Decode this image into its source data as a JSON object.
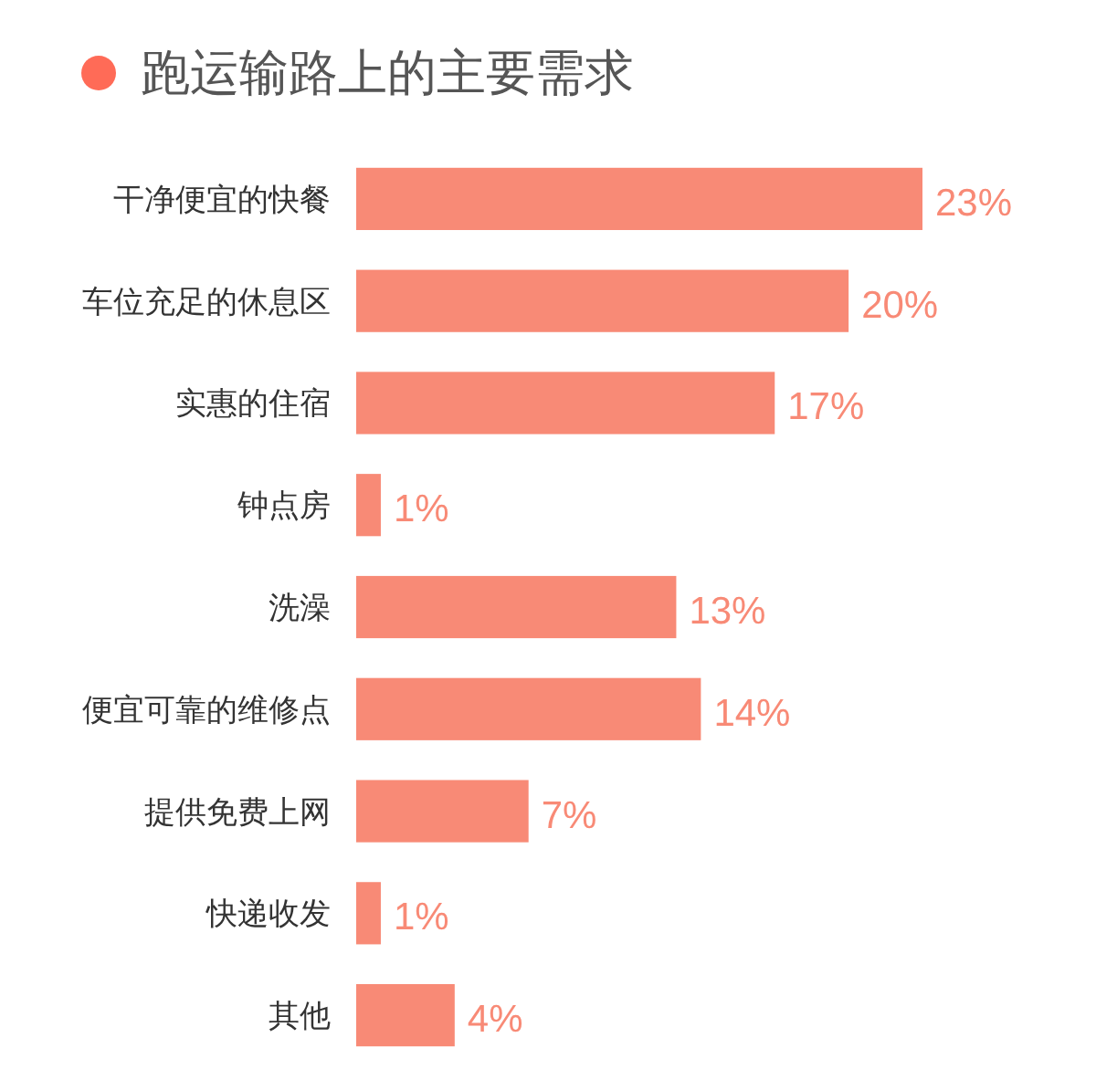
{
  "chart_data": {
    "type": "bar",
    "orientation": "horizontal",
    "title": "跑运输路上的主要需求",
    "categories": [
      "干净便宜的快餐",
      "车位充足的休息区",
      "实惠的住宿",
      "钟点房",
      "洗澡",
      "便宜可靠的维修点",
      "提供免费上网",
      "快递收发",
      "其他"
    ],
    "values": [
      23,
      20,
      17,
      1,
      13,
      14,
      7,
      1,
      4
    ],
    "value_labels": [
      "23%",
      "20%",
      "17%",
      "1%",
      "13%",
      "14%",
      "7%",
      "1%",
      "4%"
    ],
    "color": "#f88a76"
  }
}
